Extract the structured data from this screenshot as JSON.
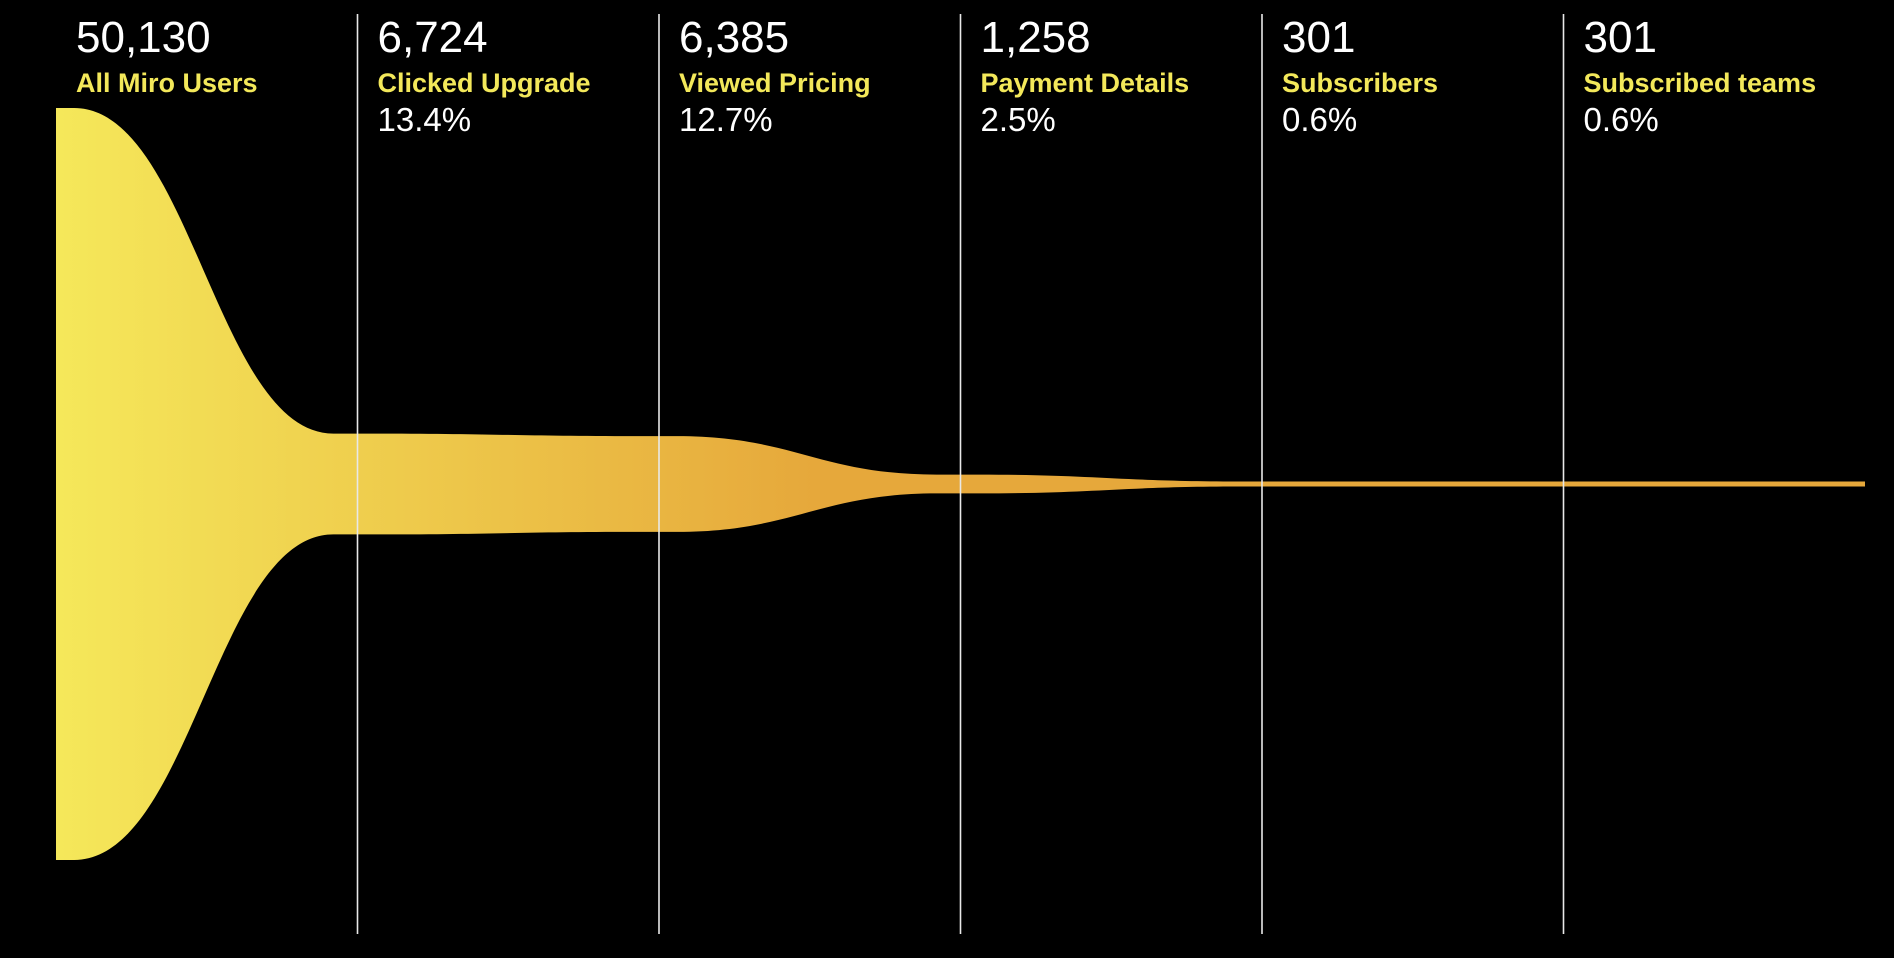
{
  "colors": {
    "background": "#000000",
    "label_accent": "#f3e85a",
    "funnel_start": "#f5e85a",
    "funnel_end": "#e6a83b",
    "divider": "#e8e8e8",
    "text": "#ffffff"
  },
  "chart_data": {
    "type": "area",
    "title": "",
    "xlabel": "",
    "ylabel": "",
    "grid": false,
    "stages": [
      {
        "name": "All Miro Users",
        "count": "50,130",
        "value": 50130,
        "percent": ""
      },
      {
        "name": "Clicked Upgrade",
        "count": "6,724",
        "value": 6724,
        "percent": "13.4%"
      },
      {
        "name": "Viewed Pricing",
        "count": "6,385",
        "value": 6385,
        "percent": "12.7%"
      },
      {
        "name": "Payment Details",
        "count": "1,258",
        "value": 1258,
        "percent": "2.5%"
      },
      {
        "name": "Subscribers",
        "count": "301",
        "value": 301,
        "percent": "0.6%"
      },
      {
        "name": "Subscribed teams",
        "count": "301",
        "value": 301,
        "percent": "0.6%"
      }
    ]
  }
}
